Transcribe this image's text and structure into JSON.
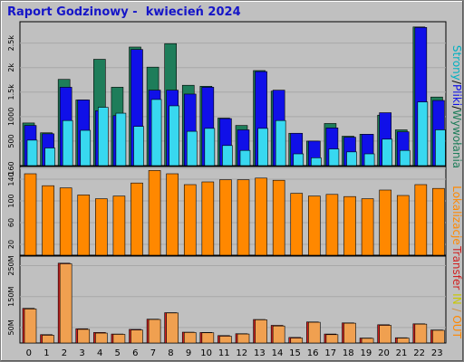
{
  "title": "Raport Godzinowy -  kwiecień 2024",
  "colors": {
    "frame": "#c0c0c0",
    "hits": "#1e7d5a",
    "files": "#1010e8",
    "pages": "#38d8f0",
    "visits": "#ff8800",
    "kb_in": "#d02020",
    "kb_out": "#f0a050",
    "label_pages": "#00b0c0",
    "label_files": "#1010e8",
    "label_hits": "#1e7d5a",
    "label_visits": "#ff8800",
    "label_transfer": "#d02020",
    "label_in": "#c8c800",
    "label_slash": "#d09040",
    "label_out": "#ff8800"
  },
  "labels": {
    "pages": "Strony",
    "files": "Pliki",
    "hits": "Wywołania",
    "visits": "Lokalizacje",
    "transfer": "Transfer",
    "in": "IN",
    "out": "OUT"
  },
  "chart_data": [
    {
      "type": "bar",
      "panel": "hits-files-pages",
      "categories": [
        "0",
        "1",
        "2",
        "3",
        "4",
        "5",
        "6",
        "7",
        "8",
        "9",
        "10",
        "11",
        "12",
        "13",
        "14",
        "15",
        "16",
        "17",
        "18",
        "19",
        "20",
        "21",
        "22",
        "23"
      ],
      "ylim": [
        0,
        2900
      ],
      "yticks": [
        500,
        1000,
        1500,
        2000,
        2500
      ],
      "ytick_labels": [
        "500",
        "1000",
        "1.5k",
        "2k",
        "2.5k"
      ],
      "series": [
        {
          "name": "Wywołania",
          "values": [
            870,
            670,
            1760,
            1340,
            2170,
            1600,
            2420,
            2010,
            2490,
            1640,
            1620,
            970,
            820,
            1940,
            1520,
            660,
            500,
            860,
            600,
            640,
            1030,
            730,
            2830,
            1400
          ]
        },
        {
          "name": "Pliki",
          "values": [
            820,
            650,
            1600,
            1340,
            1120,
            1020,
            2370,
            1540,
            1540,
            1460,
            1600,
            960,
            730,
            1920,
            1540,
            660,
            500,
            770,
            580,
            640,
            1080,
            690,
            2820,
            1330
          ]
        },
        {
          "name": "Strony",
          "values": [
            520,
            360,
            920,
            720,
            1190,
            1070,
            800,
            1350,
            1220,
            700,
            760,
            410,
            310,
            760,
            920,
            240,
            160,
            340,
            280,
            240,
            540,
            310,
            1300,
            730
          ]
        }
      ]
    },
    {
      "type": "bar",
      "panel": "visits",
      "categories": [
        "0",
        "1",
        "2",
        "3",
        "4",
        "5",
        "6",
        "7",
        "8",
        "9",
        "10",
        "11",
        "12",
        "13",
        "14",
        "15",
        "16",
        "17",
        "18",
        "19",
        "20",
        "21",
        "22",
        "23"
      ],
      "ylim": [
        0,
        160
      ],
      "yticks": [
        20,
        60,
        100,
        140,
        160
      ],
      "ytick_labels": [
        "20",
        "60",
        "100",
        "140",
        "160"
      ],
      "series": [
        {
          "name": "Lokalizacje",
          "values": [
            150,
            128,
            124,
            111,
            104,
            109,
            133,
            156,
            150,
            130,
            135,
            139,
            139,
            142,
            138,
            114,
            109,
            112,
            108,
            104,
            120,
            110,
            130,
            123
          ]
        }
      ]
    },
    {
      "type": "bar",
      "panel": "transfer",
      "categories": [
        "0",
        "1",
        "2",
        "3",
        "4",
        "5",
        "6",
        "7",
        "8",
        "9",
        "10",
        "11",
        "12",
        "13",
        "14",
        "15",
        "16",
        "17",
        "18",
        "19",
        "20",
        "21",
        "22",
        "23"
      ],
      "ylim": [
        0,
        275
      ],
      "yticks": [
        50,
        150,
        250
      ],
      "ytick_labels": [
        "50M",
        "150M",
        "250M"
      ],
      "series": [
        {
          "name": "IN",
          "values": [
            112,
            27,
            258,
            46,
            34,
            29,
            44,
            77,
            98,
            35,
            34,
            24,
            30,
            76,
            57,
            18,
            68,
            29,
            65,
            16,
            59,
            17,
            62,
            42
          ]
        },
        {
          "name": "OUT",
          "values": [
            110,
            25,
            256,
            44,
            32,
            28,
            42,
            76,
            97,
            34,
            33,
            22,
            29,
            75,
            55,
            16,
            67,
            27,
            64,
            15,
            57,
            16,
            61,
            41
          ]
        }
      ]
    }
  ]
}
